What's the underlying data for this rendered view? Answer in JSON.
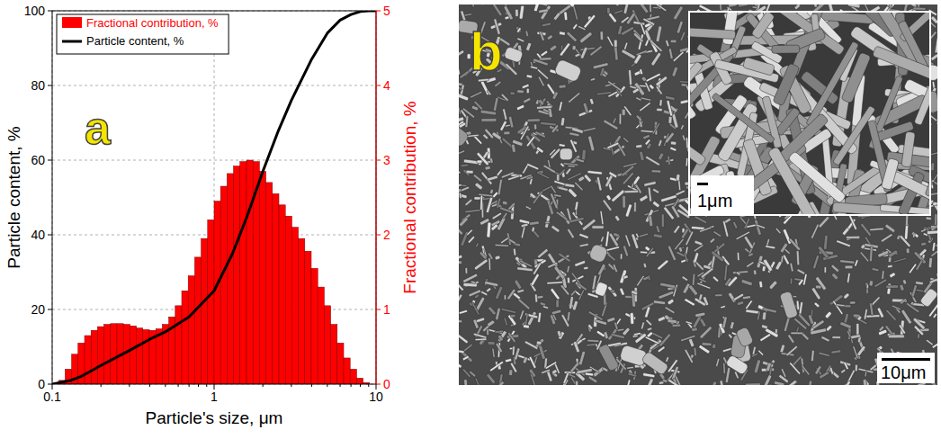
{
  "chart_data": {
    "type": "histogram",
    "panel_label": "a",
    "xlabel": "Particle's size, μm",
    "ylabel": "Particle content, %",
    "y2label": "Fractional contribution, %",
    "log": "x",
    "xlim": [
      0.1,
      10
    ],
    "xticks": [
      0.1,
      1,
      10
    ],
    "ylim": [
      0,
      100
    ],
    "yticks": [
      0,
      20,
      40,
      60,
      80,
      100
    ],
    "y2lim": [
      0,
      5
    ],
    "y2ticks": [
      0,
      1,
      2,
      3,
      4,
      5
    ],
    "grid": true,
    "legend": "upper left",
    "series": [
      {
        "name": "Fractional contribution, %",
        "type": "histogram",
        "axis": "y2",
        "color": "#ff0000",
        "bins": [
          0.1,
          0.1096,
          0.1202,
          0.1318,
          0.1445,
          0.1585,
          0.1738,
          0.1905,
          0.2089,
          0.2291,
          0.2512,
          0.2754,
          0.302,
          0.3311,
          0.3631,
          0.3981,
          0.4365,
          0.4786,
          0.5248,
          0.5754,
          0.631,
          0.6918,
          0.7586,
          0.8318,
          0.912,
          1.0,
          1.096,
          1.202,
          1.318,
          1.445,
          1.585,
          1.738,
          1.905,
          2.089,
          2.291,
          2.512,
          2.754,
          3.02,
          3.311,
          3.631,
          3.981,
          4.365,
          4.786,
          5.248,
          5.754,
          6.31,
          6.918,
          7.586,
          8.318,
          9.12,
          10.0
        ],
        "values": [
          0,
          0.05,
          0.2,
          0.4,
          0.55,
          0.65,
          0.72,
          0.77,
          0.8,
          0.81,
          0.81,
          0.8,
          0.78,
          0.75,
          0.73,
          0.72,
          0.74,
          0.8,
          0.9,
          1.05,
          1.25,
          1.45,
          1.7,
          1.95,
          2.2,
          2.45,
          2.65,
          2.82,
          2.92,
          2.98,
          3.0,
          2.98,
          2.85,
          2.7,
          2.55,
          2.4,
          2.25,
          2.1,
          1.95,
          1.78,
          1.55,
          1.3,
          1.05,
          0.8,
          0.55,
          0.35,
          0.2,
          0.08,
          0.02,
          0
        ]
      },
      {
        "name": "Particle content, %",
        "type": "line",
        "color": "#000000",
        "x": [
          0.1,
          0.13,
          0.15,
          0.2,
          0.3,
          0.4,
          0.5,
          0.7,
          1,
          1.3,
          1.6,
          2,
          2.5,
          3,
          4,
          5,
          6,
          7,
          8,
          9,
          10
        ],
        "values": [
          0,
          1,
          2,
          5,
          9,
          12,
          14,
          18,
          25,
          35,
          45,
          57,
          68,
          76,
          87,
          94,
          97.5,
          99,
          99.8,
          100,
          100
        ]
      }
    ]
  },
  "image": {
    "panel_label": "b",
    "inset_scale_label": "1μm",
    "scale_label": "10μm"
  }
}
